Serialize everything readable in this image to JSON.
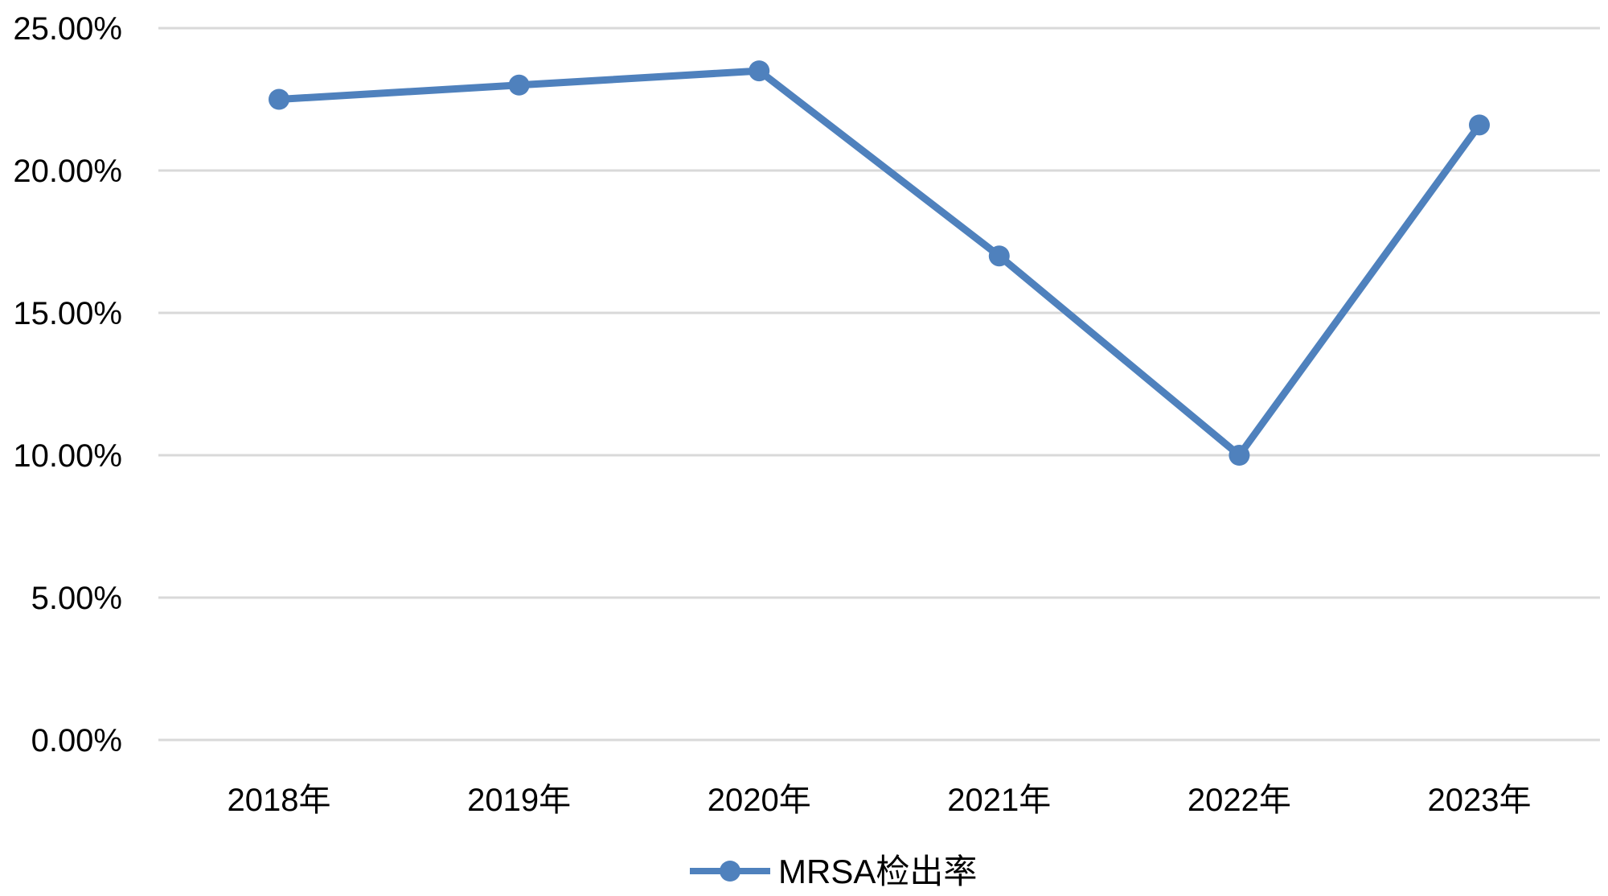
{
  "chart_data": {
    "type": "line",
    "title": "",
    "xlabel": "",
    "ylabel": "",
    "categories": [
      "2018年",
      "2019年",
      "2020年",
      "2021年",
      "2022年",
      "2023年"
    ],
    "series": [
      {
        "name": "MRSA检出率",
        "values": [
          22.5,
          23.0,
          23.5,
          17.0,
          10.0,
          21.6
        ],
        "color": "#4f81bd",
        "marker": "circle"
      }
    ],
    "ylim": [
      0,
      25
    ],
    "yticks": [
      0,
      5,
      10,
      15,
      20,
      25
    ],
    "ytick_labels": [
      "0.00%",
      "5.00%",
      "10.00%",
      "15.00%",
      "20.00%",
      "25.00%"
    ],
    "grid": true,
    "gridline_color": "#d9d9d9",
    "legend_position": "bottom"
  }
}
